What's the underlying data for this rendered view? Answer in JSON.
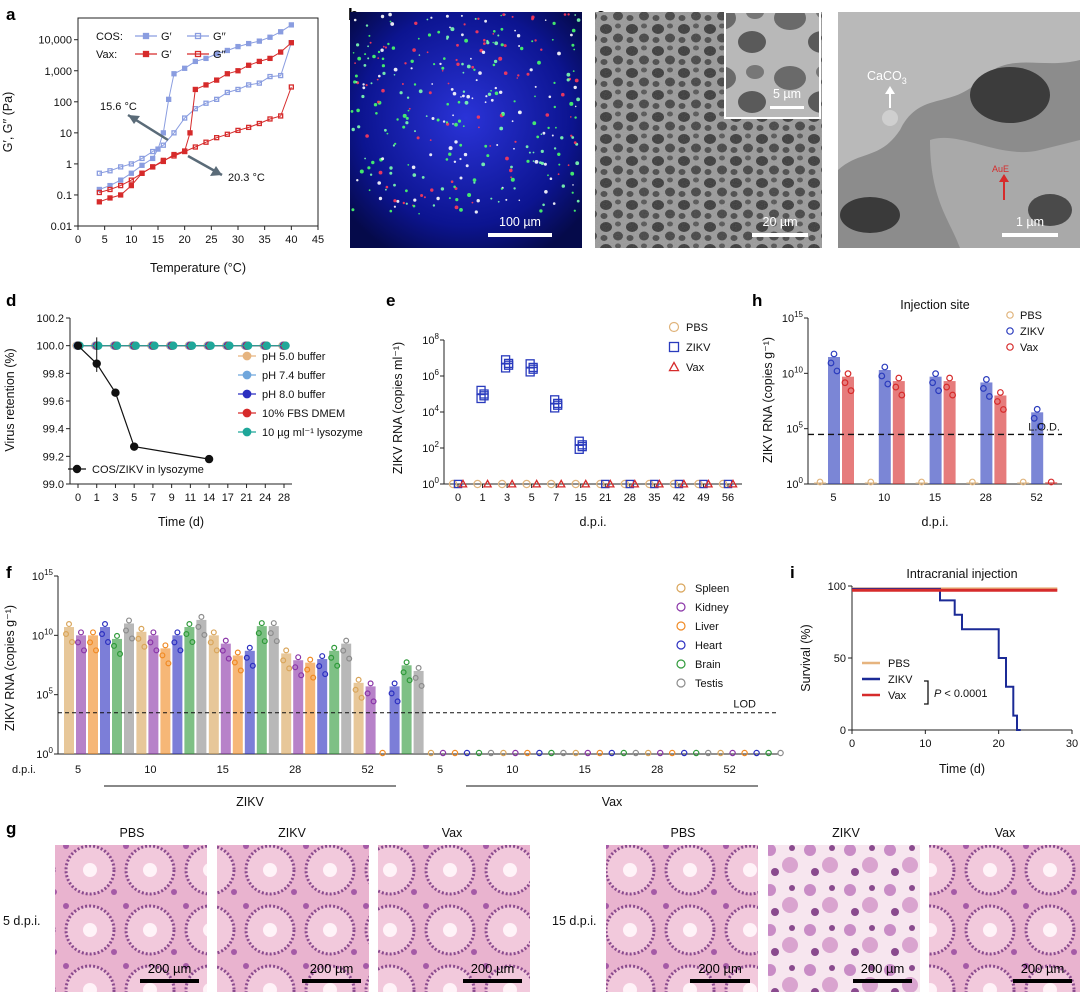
{
  "panel_labels": {
    "a": "a",
    "b": "b",
    "c": "c",
    "d": "d",
    "e": "e",
    "f": "f",
    "g": "g",
    "h": "h",
    "i": "i"
  },
  "colors": {
    "pbs": "#e0b47c",
    "zikv": "#2a3bbd",
    "vax": "#d62b2b",
    "cos": "#8a9de0",
    "fbs": "#d62b2b",
    "ph5": "#e6b47f",
    "ph74": "#6fa6dc",
    "ph8": "#2b2fc0",
    "lyz": "#1fa79a",
    "spleen": "#d9a55a",
    "kidney": "#8a35a8",
    "liver": "#f08a24",
    "heart": "#2b2fc0",
    "brain": "#2f9a3a",
    "testis": "#8c8c8c"
  },
  "images": {
    "b_scale": "100 µm",
    "c1_scale": "20 µm",
    "c1_inset_scale": "5 µm",
    "c2_scale": "1 µm",
    "c2_caco3": "CaCO",
    "c2_caco3_sub": "3",
    "c2_red_label": "AuE",
    "g_scale": "200 µm",
    "g_cols_left": [
      "PBS",
      "ZIKV",
      "Vax"
    ],
    "g_cols_right": [
      "PBS",
      "ZIKV",
      "Vax"
    ],
    "g_row_left": "5 d.p.i.",
    "g_row_right": "15 d.p.i."
  },
  "chart_data": [
    {
      "id": "a",
      "type": "line",
      "xlabel": "Temperature (°C)",
      "ylabel": "G′, G′′ (Pa)",
      "log_y": true,
      "xlim": [
        0,
        45
      ],
      "ylim": [
        0.01,
        50000
      ],
      "xticks": [
        "0",
        "5",
        "10",
        "15",
        "20",
        "25",
        "30",
        "35",
        "40",
        "45"
      ],
      "yticks": [
        "0.01",
        "0.1",
        "1",
        "10",
        "100",
        "1,000",
        "10,000"
      ],
      "legend_rows": [
        {
          "label": "COS:",
          "items": [
            "G′",
            "G′′"
          ]
        },
        {
          "label": "Vax:",
          "items": [
            "G′",
            "G′′"
          ]
        }
      ],
      "annotations": [
        "15.6 °C",
        "20.3 °C"
      ],
      "series": [
        {
          "name": "COS G′",
          "filled": true,
          "color": "#8a9de0",
          "x": [
            4,
            6,
            8,
            10,
            12,
            14,
            15,
            16,
            17,
            18,
            20,
            22,
            24,
            26,
            28,
            30,
            32,
            34,
            36,
            38,
            40
          ],
          "y": [
            0.15,
            0.2,
            0.3,
            0.5,
            0.9,
            1.5,
            3,
            10,
            120,
            800,
            1200,
            2000,
            2500,
            3500,
            4500,
            6000,
            7500,
            9000,
            12000,
            18000,
            30000
          ]
        },
        {
          "name": "COS G′′",
          "filled": false,
          "color": "#8a9de0",
          "x": [
            4,
            6,
            8,
            10,
            12,
            14,
            16,
            18,
            20,
            22,
            24,
            26,
            28,
            30,
            32,
            34,
            36,
            38,
            40
          ],
          "y": [
            0.5,
            0.6,
            0.8,
            1.0,
            1.5,
            2.5,
            4,
            10,
            30,
            60,
            90,
            120,
            200,
            250,
            350,
            400,
            650,
            700,
            8000
          ]
        },
        {
          "name": "Vax G′",
          "filled": true,
          "color": "#d62b2b",
          "x": [
            4,
            6,
            8,
            10,
            12,
            14,
            16,
            18,
            20,
            21,
            22,
            24,
            26,
            28,
            30,
            32,
            34,
            36,
            38,
            40
          ],
          "y": [
            0.06,
            0.08,
            0.1,
            0.2,
            0.5,
            0.8,
            1.2,
            2,
            2.6,
            10,
            250,
            350,
            500,
            800,
            1000,
            1500,
            2000,
            2500,
            4000,
            8000
          ]
        },
        {
          "name": "Vax G′′",
          "filled": false,
          "color": "#d62b2b",
          "x": [
            4,
            6,
            8,
            10,
            12,
            14,
            16,
            18,
            20,
            22,
            24,
            26,
            28,
            30,
            32,
            34,
            36,
            38,
            40
          ],
          "y": [
            0.12,
            0.15,
            0.2,
            0.3,
            0.5,
            0.8,
            1.3,
            1.8,
            2.5,
            3.5,
            5,
            7,
            9,
            12,
            15,
            20,
            28,
            35,
            300
          ]
        }
      ]
    },
    {
      "id": "d",
      "type": "line",
      "xlabel": "Time (d)",
      "ylabel": "Virus retention (%)",
      "ylim": [
        99.0,
        100.2
      ],
      "xticks": [
        "0",
        "1",
        "3",
        "5",
        "7",
        "9",
        "11",
        "14",
        "17",
        "21",
        "24",
        "28"
      ],
      "yticks": [
        "99.0",
        "99.2",
        "99.4",
        "99.6",
        "99.8",
        "100.0",
        "100.2"
      ],
      "series": [
        {
          "name": "pH 5.0 buffer",
          "color": "#e6b47f",
          "values": [
            100,
            100,
            100,
            100,
            100,
            100,
            100,
            100,
            100,
            100,
            100,
            100
          ]
        },
        {
          "name": "pH 7.4 buffer",
          "color": "#6fa6dc",
          "values": [
            100,
            100,
            100,
            100,
            100,
            100,
            100,
            100,
            100,
            100,
            100,
            100
          ]
        },
        {
          "name": "pH 8.0 buffer",
          "color": "#2b2fc0",
          "values": [
            100,
            100,
            100,
            100,
            100,
            100,
            100,
            100,
            100,
            100,
            100,
            100
          ]
        },
        {
          "name": "10% FBS DMEM",
          "color": "#d62b2b",
          "values": [
            100,
            100,
            100,
            100,
            100,
            100,
            100,
            100,
            100,
            100,
            100,
            100
          ]
        },
        {
          "name": "10 µg ml⁻¹ lysozyme",
          "color": "#1fa79a",
          "values": [
            100,
            100,
            100,
            100,
            100,
            100,
            100,
            100,
            100,
            100,
            100,
            100
          ]
        },
        {
          "name": "COS/ZIKV in lysozyme",
          "color": "#111111",
          "points": [
            [
              0,
              100.0
            ],
            [
              1,
              99.87
            ],
            [
              3,
              99.66
            ],
            [
              5,
              99.27
            ],
            [
              14,
              99.18
            ]
          ]
        }
      ]
    },
    {
      "id": "e",
      "type": "scatter",
      "xlabel": "d.p.i.",
      "ylabel": "ZIKV RNA (copies ml⁻¹)",
      "log_y": true,
      "categories": [
        "0",
        "1",
        "3",
        "5",
        "7",
        "15",
        "21",
        "28",
        "35",
        "42",
        "49",
        "56"
      ],
      "yticks_exp": [
        "0",
        "2",
        "4",
        "6",
        "8"
      ],
      "series": [
        {
          "name": "PBS",
          "color": "#e0b47c",
          "values": [
            1,
            1,
            1,
            1,
            1,
            1,
            1,
            1,
            1,
            1,
            1,
            1
          ]
        },
        {
          "name": "ZIKV",
          "color": "#2a3bbd",
          "values": [
            1,
            100000,
            5000000,
            3000000,
            30000,
            150,
            1,
            1,
            1,
            1,
            1,
            1
          ]
        },
        {
          "name": "Vax",
          "color": "#d62b2b",
          "values": [
            1,
            1,
            1,
            1,
            1,
            1,
            1,
            1,
            1,
            1,
            1,
            1
          ]
        }
      ]
    },
    {
      "id": "h",
      "type": "bar",
      "title": "Injection site",
      "xlabel": "d.p.i.",
      "ylabel": "ZIKV RNA (copies g⁻¹)",
      "log_y": true,
      "categories": [
        "5",
        "10",
        "15",
        "28",
        "52"
      ],
      "yticks_exp": [
        "0",
        "5",
        "10",
        "15"
      ],
      "lod": "L.O.D.",
      "lod_value": 30000,
      "series": [
        {
          "name": "PBS",
          "color": "#e0b47c",
          "values": [
            1,
            1,
            1,
            1,
            1
          ]
        },
        {
          "name": "ZIKV",
          "color": "#2a3bbd",
          "values": [
            300000000000,
            20000000000,
            5000000000,
            1500000000,
            3000000
          ]
        },
        {
          "name": "Vax",
          "color": "#d62b2b",
          "values": [
            5000000000,
            2000000000,
            2000000000,
            100000000,
            1
          ]
        }
      ]
    },
    {
      "id": "f",
      "type": "bar",
      "ylabel": "ZIKV RNA (copies g⁻¹)",
      "log_y": true,
      "xlabel_prefix": "d.p.i.",
      "groups": [
        "ZIKV",
        "Vax"
      ],
      "categories": [
        "5",
        "10",
        "15",
        "28",
        "52"
      ],
      "yticks_exp": [
        "0",
        "5",
        "10",
        "15"
      ],
      "lod": "LOD",
      "lod_value": 3000,
      "series": [
        {
          "name": "Spleen",
          "color": "#d9a55a",
          "zikv": [
            50000000000,
            20000000000,
            10000000000,
            300000000,
            1000000
          ],
          "vax": [
            1,
            1,
            1,
            1,
            1
          ]
        },
        {
          "name": "Kidney",
          "color": "#8a35a8",
          "zikv": [
            10000000000,
            10000000000,
            2000000000,
            80000000,
            500000
          ],
          "vax": [
            1,
            1,
            1,
            1,
            1
          ]
        },
        {
          "name": "Liver",
          "color": "#f08a24",
          "zikv": [
            10000000000,
            800000000,
            200000000,
            50000000,
            1
          ],
          "vax": [
            1,
            1,
            1,
            1,
            1
          ]
        },
        {
          "name": "Heart",
          "color": "#2b2fc0",
          "zikv": [
            50000000000,
            10000000000,
            500000000,
            100000000,
            500000
          ],
          "vax": [
            1,
            1,
            1,
            1,
            1
          ]
        },
        {
          "name": "Brain",
          "color": "#2f9a3a",
          "zikv": [
            5000000000,
            50000000000,
            60000000000,
            500000000,
            30000000
          ],
          "vax": [
            1,
            1,
            1,
            1,
            1
          ]
        },
        {
          "name": "Testis",
          "color": "#8c8c8c",
          "zikv": [
            100000000000,
            200000000000,
            60000000000,
            2000000000,
            10000000
          ],
          "vax": [
            1,
            1,
            1,
            1,
            1
          ]
        }
      ]
    },
    {
      "id": "i",
      "type": "line",
      "title": "Intracranial injection",
      "xlabel": "Time (d)",
      "ylabel": "Survival (%)",
      "xlim": [
        0,
        30
      ],
      "ylim": [
        0,
        100
      ],
      "xticks": [
        "0",
        "10",
        "20",
        "30"
      ],
      "yticks": [
        "0",
        "50",
        "100"
      ],
      "pvalue_italic": "P",
      "pvalue_rest": " < 0.0001",
      "series": [
        {
          "name": "PBS",
          "color": "#e6b47f",
          "points": [
            [
              0,
              98
            ],
            [
              28,
              98
            ]
          ]
        },
        {
          "name": "ZIKV",
          "color": "#1b2a96",
          "points": [
            [
              0,
              98
            ],
            [
              12,
              98
            ],
            [
              12,
              90
            ],
            [
              14,
              90
            ],
            [
              14,
              80
            ],
            [
              15,
              80
            ],
            [
              15,
              70
            ],
            [
              20,
              70
            ],
            [
              20,
              50
            ],
            [
              21,
              50
            ],
            [
              21,
              30
            ],
            [
              22,
              30
            ],
            [
              22,
              10
            ],
            [
              22.5,
              10
            ],
            [
              22.5,
              0
            ],
            [
              23,
              0
            ]
          ]
        },
        {
          "name": "Vax",
          "color": "#d62b2b",
          "points": [
            [
              0,
              97
            ],
            [
              28,
              97
            ]
          ]
        }
      ]
    }
  ]
}
